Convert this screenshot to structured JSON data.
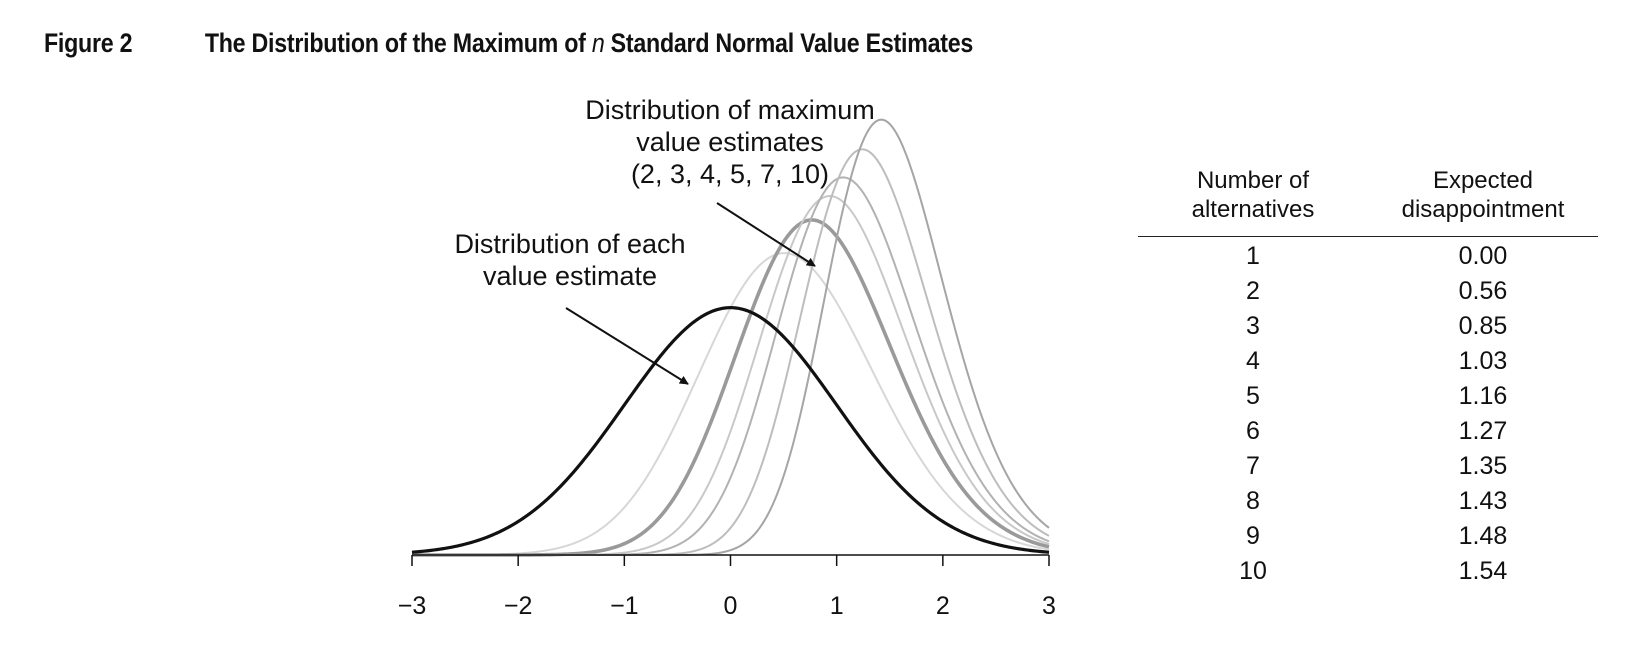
{
  "figure": {
    "label": "Figure 2",
    "title_prefix": "The Distribution of the Maximum of ",
    "title_italic": "n",
    "title_suffix": " Standard Normal Value Estimates"
  },
  "annotations": {
    "max_lines": [
      "Distribution of maximum",
      "value estimates",
      "(2, 3, 4, 5, 7, 10)"
    ],
    "each_lines": [
      "Distribution of each",
      "value estimate"
    ]
  },
  "table": {
    "col1_header_lines": [
      "Number of",
      "alternatives"
    ],
    "col2_header_lines": [
      "Expected",
      "disappointment"
    ],
    "rows": [
      {
        "n": "1",
        "d": "0.00"
      },
      {
        "n": "2",
        "d": "0.56"
      },
      {
        "n": "3",
        "d": "0.85"
      },
      {
        "n": "4",
        "d": "1.03"
      },
      {
        "n": "5",
        "d": "1.16"
      },
      {
        "n": "6",
        "d": "1.27"
      },
      {
        "n": "7",
        "d": "1.35"
      },
      {
        "n": "8",
        "d": "1.43"
      },
      {
        "n": "9",
        "d": "1.48"
      },
      {
        "n": "10",
        "d": "1.54"
      }
    ]
  },
  "chart_data": {
    "type": "line",
    "title": "The Distribution of the Maximum of n Standard Normal Value Estimates",
    "xlabel": "",
    "ylabel": "",
    "xlim": [
      -3,
      3
    ],
    "ylim": [
      0,
      0.75
    ],
    "x_ticks": [
      -3,
      -2,
      -1,
      0,
      1,
      2,
      3
    ],
    "x_tick_labels": [
      "−3",
      "−2",
      "−1",
      "0",
      "1",
      "2",
      "3"
    ],
    "grid": false,
    "series": [
      {
        "n": 1,
        "color": "#111111",
        "width": 3.2
      },
      {
        "n": 2,
        "color": "#d7d7d7",
        "width": 2
      },
      {
        "n": 3,
        "color": "#9a9a9a",
        "width": 3.6
      },
      {
        "n": 4,
        "color": "#c8c8c8",
        "width": 2
      },
      {
        "n": 5,
        "color": "#b2b2b2",
        "width": 2
      },
      {
        "n": 7,
        "color": "#bdbdbd",
        "width": 2
      },
      {
        "n": 10,
        "color": "#a5a5a5",
        "width": 2
      }
    ]
  }
}
